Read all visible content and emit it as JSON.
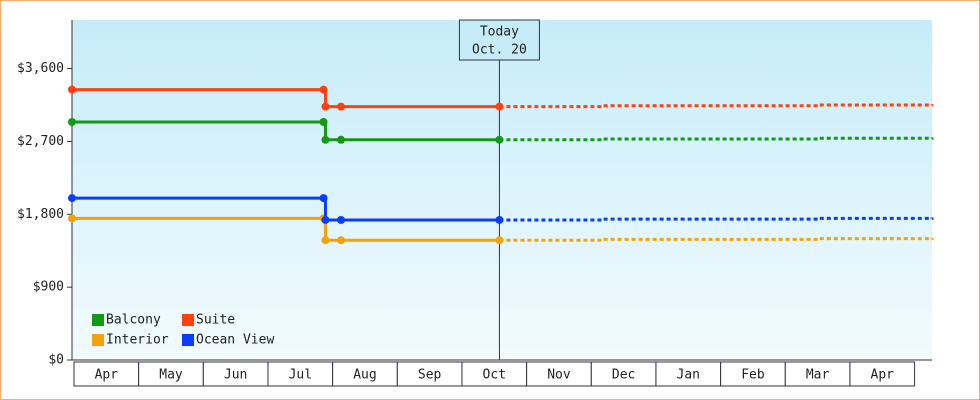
{
  "chart_data": {
    "type": "step-line",
    "categories": [
      "Apr",
      "May",
      "Jun",
      "Jul",
      "Aug",
      "Sep",
      "Oct",
      "Nov",
      "Dec",
      "Jan",
      "Feb",
      "Mar",
      "Apr"
    ],
    "x": [
      0,
      3.89,
      3.92,
      4.16,
      6.61
    ],
    "forecast_x": [
      6.61,
      8.2,
      11.55,
      13.3
    ],
    "xlim": [
      0,
      13.3
    ],
    "ylim": [
      0,
      4200
    ],
    "yticks": [
      {
        "value": 0,
        "label": "$0"
      },
      {
        "value": 900,
        "label": "$900"
      },
      {
        "value": 1800,
        "label": "$1,800"
      },
      {
        "value": 2700,
        "label": "$2,700"
      },
      {
        "value": 3600,
        "label": "$3,600"
      }
    ],
    "annotation": {
      "x": 6.61,
      "lines": [
        "Today",
        "Oct. 20"
      ]
    },
    "series": [
      {
        "name": "Balcony",
        "color": "#129a12",
        "values": [
          2940,
          2940,
          2720,
          2720,
          2720
        ],
        "forecast": [
          2720,
          2730,
          2740,
          2750
        ]
      },
      {
        "name": "Suite",
        "color": "#ff4010",
        "values": [
          3340,
          3340,
          3130,
          3130,
          3130
        ],
        "forecast": [
          3130,
          3140,
          3150,
          3160
        ]
      },
      {
        "name": "Interior",
        "color": "#f5a20a",
        "values": [
          1750,
          1750,
          1480,
          1480,
          1480
        ],
        "forecast": [
          1480,
          1490,
          1500,
          1510
        ]
      },
      {
        "name": "Ocean View",
        "color": "#0a3cff",
        "values": [
          2000,
          2000,
          1730,
          1730,
          1730
        ],
        "forecast": [
          1730,
          1740,
          1750,
          1760
        ]
      }
    ]
  }
}
